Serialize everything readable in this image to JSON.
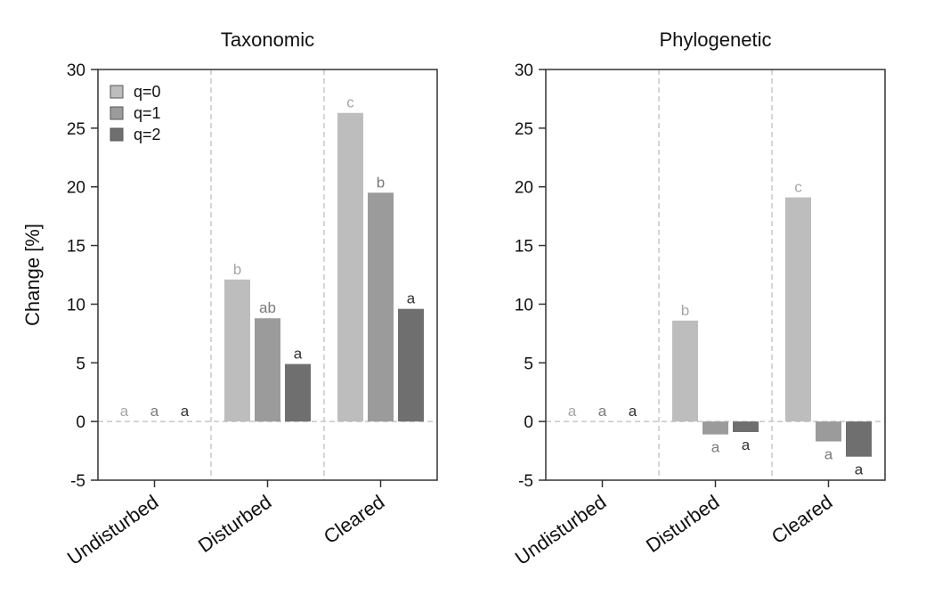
{
  "chart_data": [
    {
      "type": "bar",
      "title": "Taxonomic",
      "xlabel": "",
      "ylabel": "Change [%]",
      "ylim": [
        -5,
        30
      ],
      "yticks": [
        "-5",
        "0",
        "5",
        "10",
        "15",
        "20",
        "25",
        "30"
      ],
      "categories": [
        "Undisturbed",
        "Disturbed",
        "Cleared"
      ],
      "grid": false,
      "legend_position": "top-left",
      "series": [
        {
          "name": "q=0",
          "color": "#bdbdbd",
          "label_color": "#a6a6a6",
          "values": [
            0,
            12.1,
            26.3
          ],
          "sig_letters": [
            "a",
            "b",
            "c"
          ]
        },
        {
          "name": "q=1",
          "color": "#9b9b9b",
          "label_color": "#7a7a7a",
          "values": [
            0,
            8.8,
            19.5
          ],
          "sig_letters": [
            "a",
            "ab",
            "b"
          ]
        },
        {
          "name": "q=2",
          "color": "#6f6f6f",
          "label_color": "#333333",
          "values": [
            0,
            4.9,
            9.6
          ],
          "sig_letters": [
            "a",
            "a",
            "a"
          ]
        }
      ]
    },
    {
      "type": "bar",
      "title": "Phylogenetic",
      "xlabel": "",
      "ylabel": "",
      "ylim": [
        -5,
        30
      ],
      "yticks": [
        "-5",
        "0",
        "5",
        "10",
        "15",
        "20",
        "25",
        "30"
      ],
      "categories": [
        "Undisturbed",
        "Disturbed",
        "Cleared"
      ],
      "grid": false,
      "series": [
        {
          "name": "q=0",
          "color": "#bdbdbd",
          "label_color": "#a6a6a6",
          "values": [
            0,
            8.6,
            19.1
          ],
          "sig_letters": [
            "a",
            "b",
            "c"
          ]
        },
        {
          "name": "q=1",
          "color": "#9b9b9b",
          "label_color": "#7a7a7a",
          "values": [
            0,
            -1.1,
            -1.7
          ],
          "sig_letters": [
            "a",
            "a",
            "a"
          ]
        },
        {
          "name": "q=2",
          "color": "#6f6f6f",
          "label_color": "#333333",
          "values": [
            0,
            -0.9,
            -3.0
          ],
          "sig_letters": [
            "a",
            "a",
            "a"
          ]
        }
      ]
    }
  ]
}
